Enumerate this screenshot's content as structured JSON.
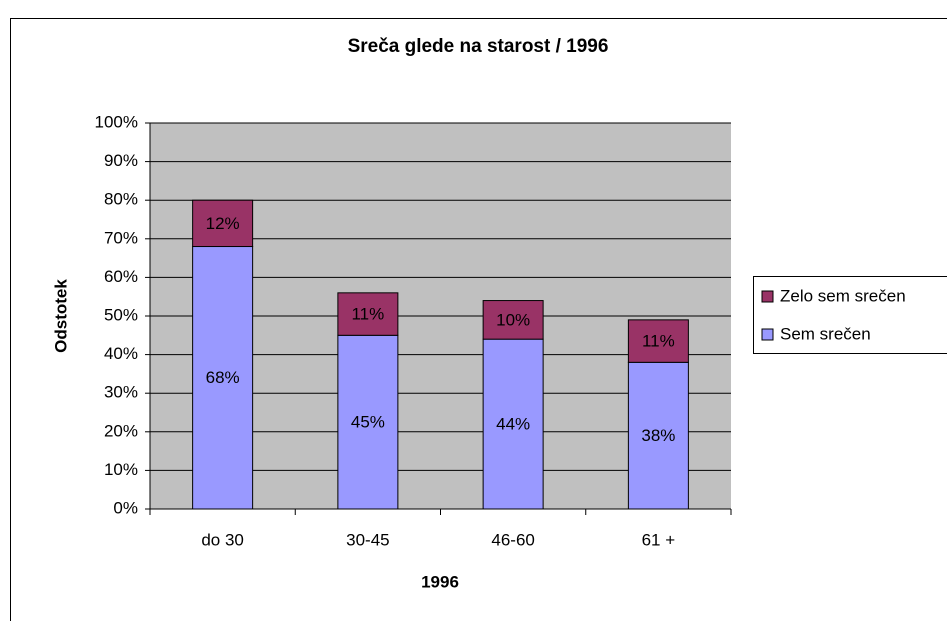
{
  "chart_data": {
    "type": "stacked_bar",
    "title": "Sreča glede na starost / 1996",
    "x_label": "1996",
    "y_label": "Odstotek",
    "categories": [
      "do 30",
      "30-45",
      "46-60",
      "61 +"
    ],
    "series": [
      {
        "name": "Sem srečen",
        "color": "#9999ff",
        "values": [
          68,
          45,
          44,
          38
        ],
        "value_labels": [
          "68%",
          "45%",
          "44%",
          "38%"
        ]
      },
      {
        "name": "Zelo sem srečen",
        "color": "#993366",
        "values": [
          12,
          11,
          10,
          11
        ],
        "value_labels": [
          "12%",
          "11%",
          "10%",
          "11%"
        ]
      }
    ],
    "ylim": [
      0,
      100
    ],
    "yticks": [
      {
        "value": 0,
        "label": "0%"
      },
      {
        "value": 10,
        "label": "10%"
      },
      {
        "value": 20,
        "label": "20%"
      },
      {
        "value": 30,
        "label": "30%"
      },
      {
        "value": 40,
        "label": "40%"
      },
      {
        "value": 50,
        "label": "50%"
      },
      {
        "value": 60,
        "label": "60%"
      },
      {
        "value": 70,
        "label": "70%"
      },
      {
        "value": 80,
        "label": "80%"
      },
      {
        "value": 90,
        "label": "90%"
      },
      {
        "value": 100,
        "label": "100%"
      }
    ],
    "grid": true,
    "legend": "right"
  }
}
